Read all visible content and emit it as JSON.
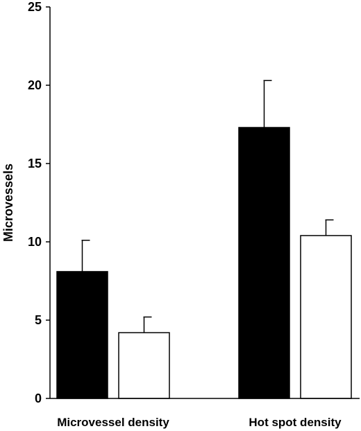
{
  "chart_data": {
    "type": "bar",
    "title": "",
    "xlabel": "",
    "ylabel": "Microvessels",
    "ylim": [
      0,
      25
    ],
    "yticks": [
      0,
      5,
      10,
      15,
      20,
      25
    ],
    "grid": false,
    "legend": "none",
    "categories": [
      "Microvessel density",
      "Hot spot density"
    ],
    "series": [
      {
        "color": "#000000",
        "values": [
          8.1,
          17.3
        ],
        "errors": [
          2.0,
          3.0
        ]
      },
      {
        "color": "#ffffff",
        "values": [
          4.2,
          10.4
        ],
        "errors": [
          1.0,
          1.0
        ]
      }
    ]
  }
}
